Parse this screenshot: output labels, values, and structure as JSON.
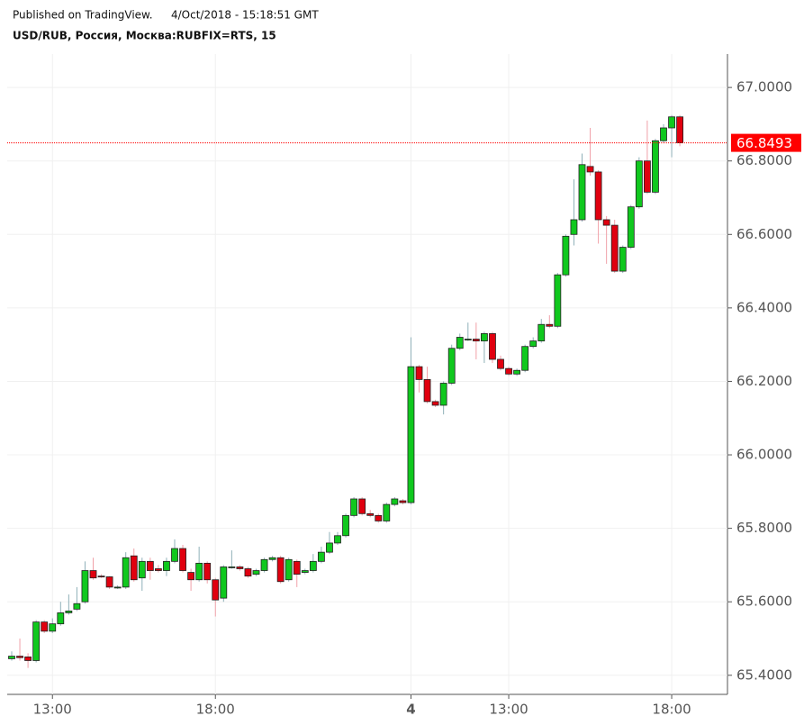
{
  "chart_data": {
    "type": "candlestick",
    "published": "Published on TradingView.",
    "timestamp": "4/Oct/2018 - 15:18:51 GMT",
    "title": "USD/RUB, Россия, Москва:RUBFIX=RTS, 15",
    "categories": [
      null,
      null,
      null,
      null,
      null,
      "13:00",
      null,
      null,
      null,
      null,
      null,
      null,
      null,
      null,
      null,
      null,
      null,
      null,
      null,
      null,
      null,
      null,
      null,
      null,
      null,
      "18:00",
      null,
      null,
      null,
      null,
      null,
      null,
      null,
      null,
      null,
      null,
      null,
      null,
      null,
      null,
      null,
      null,
      null,
      null,
      null,
      null,
      null,
      null,
      null,
      "4",
      null,
      null,
      null,
      null,
      null,
      null,
      null,
      null,
      null,
      null,
      null,
      "13:00",
      null,
      null,
      null,
      null,
      null,
      null,
      null,
      null,
      null,
      null,
      null,
      null,
      null,
      null,
      null,
      null,
      null,
      null,
      null,
      "18:00",
      null
    ],
    "open": [
      65.445,
      65.452,
      65.45,
      65.44,
      65.545,
      65.52,
      65.54,
      65.57,
      65.58,
      65.6,
      65.685,
      65.67,
      65.668,
      65.64,
      65.64,
      65.725,
      65.665,
      65.71,
      65.69,
      65.685,
      65.71,
      65.745,
      65.68,
      65.66,
      65.705,
      65.66,
      65.61,
      65.695,
      65.695,
      65.69,
      65.675,
      65.685,
      65.715,
      65.72,
      65.66,
      65.71,
      65.68,
      65.685,
      65.71,
      65.735,
      65.76,
      65.78,
      65.835,
      65.88,
      65.84,
      65.835,
      65.82,
      65.865,
      65.875,
      65.87,
      66.24,
      66.205,
      66.145,
      66.135,
      66.195,
      66.29,
      66.315,
      66.315,
      66.31,
      66.33,
      66.26,
      66.235,
      66.22,
      66.23,
      66.295,
      66.31,
      66.355,
      66.35,
      66.49,
      66.6,
      66.64,
      66.785,
      66.77,
      66.64,
      66.625,
      66.5,
      66.565,
      66.675,
      66.8,
      66.715,
      66.855,
      66.89,
      66.92
    ],
    "high": [
      65.465,
      65.5,
      65.46,
      65.55,
      65.55,
      65.555,
      65.6,
      65.62,
      65.64,
      65.71,
      65.72,
      65.675,
      65.67,
      65.645,
      65.735,
      65.745,
      65.72,
      65.72,
      65.7,
      65.72,
      65.77,
      65.755,
      65.69,
      65.75,
      65.71,
      65.665,
      65.7,
      65.74,
      65.7,
      65.695,
      65.69,
      65.72,
      65.725,
      65.725,
      65.72,
      65.715,
      65.69,
      65.73,
      65.75,
      65.79,
      65.79,
      65.84,
      65.885,
      65.885,
      65.85,
      65.84,
      65.87,
      65.885,
      65.88,
      66.32,
      66.245,
      66.24,
      66.15,
      66.2,
      66.3,
      66.33,
      66.36,
      66.36,
      66.335,
      66.335,
      66.27,
      66.24,
      66.235,
      66.3,
      66.32,
      66.37,
      66.38,
      66.495,
      66.6,
      66.75,
      66.82,
      66.89,
      66.775,
      66.65,
      66.64,
      66.57,
      66.68,
      66.81,
      66.91,
      66.86,
      66.9,
      66.925,
      66.925
    ],
    "low": [
      65.44,
      65.44,
      65.42,
      65.435,
      65.515,
      65.515,
      65.535,
      65.565,
      65.575,
      65.595,
      65.66,
      65.665,
      65.635,
      65.635,
      65.635,
      65.655,
      65.63,
      65.66,
      65.68,
      65.67,
      65.705,
      65.68,
      65.63,
      65.655,
      65.65,
      65.56,
      65.6,
      65.69,
      65.685,
      65.665,
      65.67,
      65.68,
      65.71,
      65.65,
      65.655,
      65.64,
      65.675,
      65.68,
      65.705,
      65.73,
      65.755,
      65.775,
      65.83,
      65.835,
      65.83,
      65.815,
      65.815,
      65.86,
      65.865,
      65.865,
      66.17,
      66.14,
      66.13,
      66.11,
      66.19,
      66.285,
      66.31,
      66.26,
      66.25,
      66.25,
      66.23,
      66.215,
      66.215,
      66.225,
      66.29,
      66.305,
      66.345,
      66.345,
      66.485,
      66.57,
      66.635,
      66.76,
      66.575,
      66.52,
      66.495,
      66.495,
      66.56,
      66.67,
      66.71,
      66.71,
      66.85,
      66.81,
      66.84
    ],
    "close": [
      65.452,
      65.448,
      65.44,
      65.545,
      65.52,
      65.54,
      65.57,
      65.575,
      65.595,
      65.685,
      65.665,
      65.668,
      65.64,
      65.64,
      65.72,
      65.66,
      65.71,
      65.685,
      65.685,
      65.71,
      65.745,
      65.685,
      65.66,
      65.705,
      65.66,
      65.605,
      65.695,
      65.695,
      65.69,
      65.67,
      65.685,
      65.715,
      65.72,
      65.655,
      65.715,
      65.675,
      65.685,
      65.71,
      65.735,
      65.76,
      65.78,
      65.835,
      65.88,
      65.84,
      65.835,
      65.82,
      65.865,
      65.88,
      65.87,
      66.24,
      66.205,
      66.145,
      66.135,
      66.195,
      66.29,
      66.32,
      66.315,
      66.31,
      66.33,
      66.26,
      66.235,
      66.22,
      66.23,
      66.295,
      66.31,
      66.355,
      66.35,
      66.49,
      66.595,
      66.64,
      66.79,
      66.77,
      66.64,
      66.625,
      66.5,
      66.565,
      66.675,
      66.8,
      66.715,
      66.855,
      66.89,
      66.92,
      66.8493
    ],
    "up_color": "#10c81e",
    "down_color": "#e0000f",
    "up_wick": "#8fb0b8",
    "down_wick": "#f0a0a8",
    "price_line": 66.8493,
    "price_color": "#ff0000",
    "ylim": [
      65.348,
      67.091
    ],
    "yticks": [
      {
        "value": 65.4,
        "label": "65.4000"
      },
      {
        "value": 65.6,
        "label": "65.6000"
      },
      {
        "value": 65.8,
        "label": "65.8000"
      },
      {
        "value": 66.0,
        "label": "66.0000"
      },
      {
        "value": 66.2,
        "label": "66.2000"
      },
      {
        "value": 66.4,
        "label": "66.4000"
      },
      {
        "value": 66.6,
        "label": "66.6000"
      },
      {
        "value": 66.8,
        "label": "66.8000"
      },
      {
        "value": 67.0,
        "label": "67.0000"
      }
    ],
    "grid": true
  }
}
